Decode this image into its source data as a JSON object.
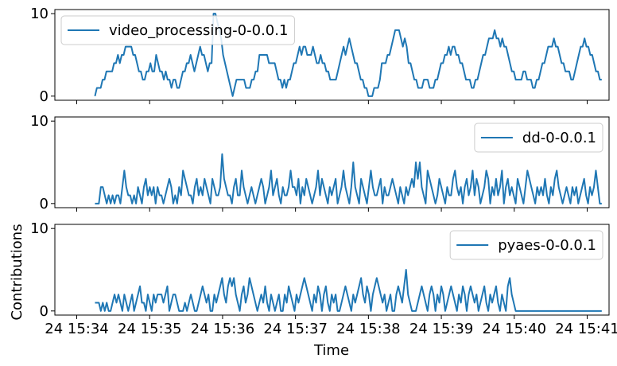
{
  "chart_data": [
    {
      "type": "line",
      "series": [
        {
          "name": "video_processing-0-0.0.1",
          "color": "#1f77b4",
          "values": [
            0,
            1,
            1,
            1,
            2,
            2,
            3,
            3,
            3,
            3,
            4,
            4,
            5,
            4,
            5,
            5,
            6,
            6,
            6,
            6,
            5,
            5,
            4,
            3,
            3,
            2,
            2,
            3,
            3,
            4,
            3,
            3,
            5,
            4,
            3,
            3,
            2,
            3,
            2,
            2,
            1,
            2,
            2,
            1,
            1,
            2,
            3,
            3,
            4,
            4,
            5,
            4,
            3,
            4,
            5,
            6,
            5,
            5,
            4,
            3,
            4,
            4,
            10,
            10,
            9,
            8,
            7,
            5,
            4,
            3,
            2,
            1,
            0,
            1,
            2,
            2,
            2,
            2,
            2,
            1,
            1,
            1,
            2,
            2,
            3,
            3,
            5,
            5,
            5,
            5,
            5,
            4,
            4,
            4,
            4,
            3,
            2,
            2,
            1,
            2,
            1,
            2,
            2,
            3,
            4,
            4,
            5,
            6,
            5,
            6,
            6,
            5,
            5,
            5,
            6,
            5,
            4,
            4,
            5,
            4,
            4,
            3,
            3,
            2,
            2,
            2,
            2,
            3,
            4,
            5,
            6,
            5,
            6,
            7,
            6,
            5,
            4,
            4,
            3,
            2,
            2,
            1,
            1,
            0,
            0,
            0,
            1,
            1,
            1,
            2,
            4,
            4,
            4,
            5,
            5,
            6,
            7,
            8,
            8,
            8,
            7,
            6,
            7,
            6,
            4,
            4,
            3,
            2,
            2,
            1,
            1,
            1,
            2,
            2,
            2,
            1,
            1,
            1,
            2,
            2,
            3,
            4,
            4,
            5,
            5,
            6,
            5,
            6,
            6,
            5,
            5,
            4,
            4,
            3,
            2,
            2,
            2,
            1,
            1,
            2,
            2,
            3,
            4,
            5,
            5,
            6,
            7,
            7,
            7,
            8,
            7,
            7,
            6,
            7,
            6,
            6,
            5,
            4,
            3,
            3,
            2,
            2,
            2,
            2,
            3,
            3,
            2,
            2,
            2,
            1,
            1,
            2,
            2,
            3,
            4,
            4,
            5,
            6,
            6,
            6,
            7,
            6,
            6,
            5,
            4,
            4,
            3,
            3,
            3,
            2,
            2,
            3,
            4,
            5,
            6,
            6,
            7,
            6,
            6,
            5,
            5,
            4,
            3,
            3,
            2,
            2
          ]
        }
      ],
      "ylim": [
        -0.5,
        10.5
      ],
      "yticks": [
        0,
        10
      ]
    },
    {
      "type": "line",
      "series": [
        {
          "name": "dd-0-0.0.1",
          "color": "#1f77b4",
          "values": [
            0,
            0,
            0,
            2,
            2,
            1,
            0,
            1,
            0,
            1,
            0,
            1,
            1,
            0,
            2,
            4,
            2,
            1,
            1,
            0,
            1,
            0,
            2,
            1,
            0,
            2,
            3,
            1,
            2,
            1,
            2,
            0,
            2,
            1,
            1,
            0,
            1,
            2,
            3,
            2,
            0,
            1,
            0,
            2,
            1,
            4,
            3,
            2,
            1,
            1,
            0,
            2,
            3,
            1,
            2,
            1,
            3,
            2,
            1,
            0,
            3,
            2,
            1,
            1,
            2,
            6,
            3,
            2,
            1,
            1,
            0,
            2,
            3,
            1,
            1,
            4,
            2,
            1,
            0,
            1,
            2,
            1,
            0,
            1,
            2,
            3,
            2,
            0,
            1,
            2,
            4,
            1,
            2,
            3,
            1,
            0,
            2,
            1,
            1,
            2,
            4,
            2,
            2,
            1,
            3,
            0,
            2,
            1,
            3,
            2,
            1,
            0,
            1,
            2,
            4,
            1,
            3,
            2,
            1,
            0,
            2,
            1,
            2,
            3,
            0,
            1,
            2,
            4,
            2,
            1,
            0,
            2,
            5,
            2,
            1,
            0,
            3,
            2,
            1,
            0,
            2,
            4,
            2,
            1,
            1,
            2,
            3,
            0,
            2,
            1,
            1,
            2,
            3,
            2,
            1,
            0,
            2,
            1,
            0,
            2,
            1,
            2,
            3,
            2,
            5,
            3,
            5,
            2,
            1,
            0,
            4,
            3,
            2,
            1,
            0,
            1,
            3,
            2,
            1,
            0,
            2,
            1,
            1,
            3,
            4,
            2,
            1,
            2,
            0,
            2,
            3,
            1,
            2,
            4,
            1,
            3,
            2,
            0,
            1,
            2,
            4,
            3,
            0,
            2,
            1,
            3,
            1,
            2,
            4,
            0,
            2,
            3,
            1,
            2,
            1,
            0,
            3,
            2,
            1,
            0,
            2,
            4,
            3,
            2,
            1,
            0,
            2,
            1,
            2,
            1,
            3,
            1,
            0,
            2,
            1,
            3,
            4,
            2,
            1,
            0,
            1,
            2,
            1,
            0,
            2,
            1,
            2,
            0,
            1,
            2,
            3,
            1,
            0,
            2,
            1,
            2,
            4,
            2,
            0,
            0
          ]
        }
      ],
      "ylim": [
        -0.5,
        10.5
      ],
      "yticks": [
        0,
        10
      ]
    },
    {
      "type": "line",
      "series": [
        {
          "name": "pyaes-0-0.0.1",
          "color": "#1f77b4",
          "values": [
            1,
            1,
            1,
            0,
            1,
            0,
            1,
            0,
            0,
            1,
            2,
            1,
            2,
            1,
            0,
            2,
            1,
            0,
            1,
            2,
            0,
            1,
            2,
            3,
            1,
            1,
            0,
            2,
            1,
            0,
            2,
            1,
            2,
            2,
            2,
            1,
            2,
            3,
            0,
            1,
            2,
            2,
            1,
            0,
            0,
            0,
            1,
            0,
            1,
            2,
            1,
            0,
            0,
            1,
            2,
            3,
            2,
            1,
            2,
            0,
            0,
            2,
            1,
            2,
            3,
            4,
            2,
            1,
            3,
            4,
            3,
            4,
            2,
            1,
            0,
            2,
            3,
            1,
            2,
            4,
            3,
            2,
            1,
            0,
            1,
            2,
            1,
            3,
            1,
            0,
            2,
            1,
            0,
            1,
            2,
            0,
            0,
            2,
            1,
            3,
            2,
            1,
            0,
            2,
            1,
            2,
            3,
            4,
            3,
            2,
            1,
            0,
            2,
            1,
            3,
            2,
            0,
            2,
            3,
            1,
            0,
            2,
            1,
            2,
            0,
            0,
            1,
            2,
            3,
            2,
            1,
            0,
            2,
            1,
            2,
            3,
            4,
            2,
            1,
            3,
            2,
            0,
            2,
            3,
            4,
            3,
            2,
            1,
            2,
            0,
            1,
            2,
            0,
            0,
            2,
            3,
            2,
            1,
            3,
            5,
            2,
            1,
            0,
            0,
            0,
            1,
            2,
            3,
            2,
            1,
            0,
            2,
            3,
            2,
            0,
            2,
            1,
            3,
            2,
            0,
            1,
            2,
            3,
            2,
            1,
            0,
            2,
            1,
            3,
            2,
            0,
            2,
            3,
            2,
            1,
            2,
            0,
            1,
            2,
            3,
            1,
            0,
            2,
            1,
            2,
            3,
            1,
            0,
            2,
            1,
            0,
            3,
            4,
            2,
            1,
            0,
            0,
            0,
            0,
            0,
            0,
            0,
            0,
            0,
            0,
            0,
            0,
            0,
            0,
            0,
            0,
            0,
            0,
            0,
            0,
            0,
            0,
            0,
            0,
            0,
            0,
            0,
            0,
            0,
            0,
            0,
            0,
            0,
            0,
            0,
            0,
            0,
            0,
            0,
            0,
            0,
            0,
            0,
            0,
            0
          ]
        }
      ],
      "ylim": [
        -0.5,
        10.5
      ],
      "yticks": [
        0,
        10
      ]
    }
  ],
  "xaxis": {
    "label": "Time",
    "xlim": [
      -0.3,
      7.3
    ],
    "series_x_range": [
      0.25,
      7.2
    ],
    "ticks": [
      {
        "value": 0,
        "label": "24 15:34"
      },
      {
        "value": 1,
        "label": "24 15:35"
      },
      {
        "value": 2,
        "label": "24 15:36"
      },
      {
        "value": 3,
        "label": "24 15:37"
      },
      {
        "value": 4,
        "label": "24 15:38"
      },
      {
        "value": 5,
        "label": "24 15:39"
      },
      {
        "value": 6,
        "label": "24 15:40"
      },
      {
        "value": 7,
        "label": "24 15:41"
      }
    ]
  },
  "ylabel": "Contributions",
  "legend_positions": [
    "top-left",
    "top-right",
    "top-right"
  ]
}
